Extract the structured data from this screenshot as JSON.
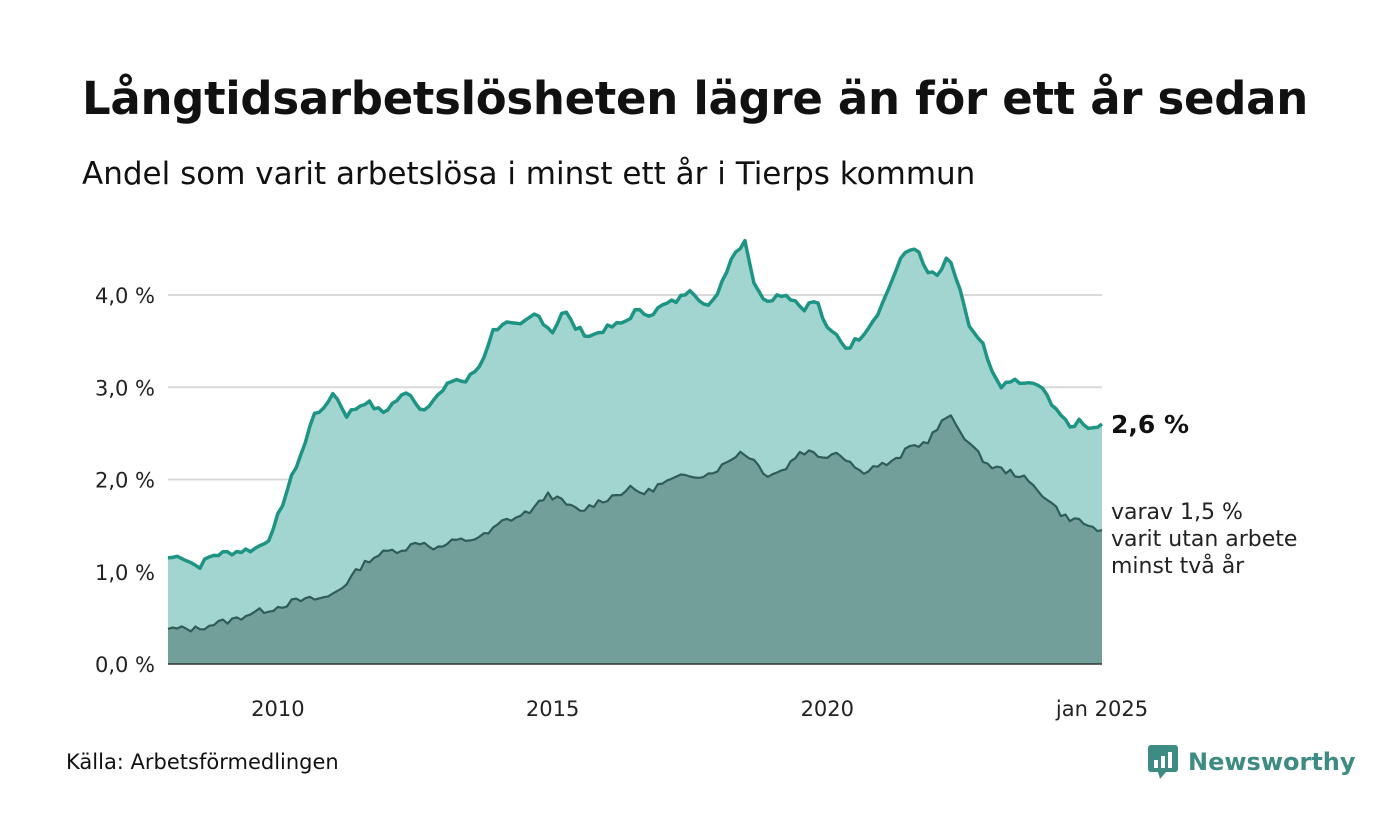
{
  "title": "Långtidsarbetslösheten lägre än för ett år sedan",
  "subtitle": "Andel som varit arbetslösa i minst ett år i Tierps kommun",
  "source": "Källa: Arbetsförmedlingen",
  "brand": {
    "name": "Newsworthy",
    "icon": "newsworthy-logo-icon",
    "color": "#3d8b83"
  },
  "colors": {
    "upper_fill": "#a3d5d0",
    "upper_line": "#1e9484",
    "lower_fill": "#729f99",
    "lower_line": "#2f5d57",
    "grid": "#d9d9d9"
  },
  "chart_data": {
    "type": "area",
    "x_start": "2008-01",
    "x_end": "2025-01",
    "frequency": "monthly",
    "ylim": [
      0,
      4.8
    ],
    "yticks": [
      0,
      1,
      2,
      3,
      4
    ],
    "ytick_labels": [
      "0,0 %",
      "1,0 %",
      "2,0 %",
      "3,0 %",
      "4,0 %"
    ],
    "xticks": [
      2010,
      2015,
      2020,
      2025
    ],
    "xtick_labels": [
      "2010",
      "2015",
      "2020",
      "jan 2025"
    ],
    "grid": true,
    "end_label": "2,6 %",
    "annotation_lines": [
      "varav 1,5 %",
      "varit utan arbete",
      "minst två år"
    ],
    "series": [
      {
        "key": "minst_ett_ar",
        "anchors": [
          [
            2008.0,
            1.15
          ],
          [
            2008.25,
            1.17
          ],
          [
            2008.55,
            1.05
          ],
          [
            2008.8,
            1.18
          ],
          [
            2009.25,
            1.22
          ],
          [
            2009.6,
            1.25
          ],
          [
            2009.9,
            1.4
          ],
          [
            2010.0,
            1.6
          ],
          [
            2010.3,
            2.1
          ],
          [
            2010.5,
            2.4
          ],
          [
            2010.7,
            2.8
          ],
          [
            2010.8,
            2.7
          ],
          [
            2011.0,
            2.95
          ],
          [
            2011.25,
            2.7
          ],
          [
            2011.6,
            2.85
          ],
          [
            2011.9,
            2.72
          ],
          [
            2012.2,
            2.88
          ],
          [
            2012.4,
            2.95
          ],
          [
            2012.6,
            2.75
          ],
          [
            2012.8,
            2.85
          ],
          [
            2013.0,
            2.95
          ],
          [
            2013.2,
            3.1
          ],
          [
            2013.4,
            3.05
          ],
          [
            2013.7,
            3.25
          ],
          [
            2013.9,
            3.6
          ],
          [
            2014.1,
            3.7
          ],
          [
            2014.4,
            3.65
          ],
          [
            2014.7,
            3.8
          ],
          [
            2015.0,
            3.6
          ],
          [
            2015.2,
            3.85
          ],
          [
            2015.4,
            3.65
          ],
          [
            2015.7,
            3.55
          ],
          [
            2015.9,
            3.62
          ],
          [
            2016.3,
            3.7
          ],
          [
            2016.5,
            3.82
          ],
          [
            2016.8,
            3.8
          ],
          [
            2017.0,
            3.88
          ],
          [
            2017.3,
            3.95
          ],
          [
            2017.5,
            4.08
          ],
          [
            2017.7,
            3.95
          ],
          [
            2017.8,
            3.85
          ],
          [
            2017.9,
            3.9
          ],
          [
            2018.05,
            4.1
          ],
          [
            2018.25,
            4.4
          ],
          [
            2018.5,
            4.6
          ],
          [
            2018.7,
            4.05
          ],
          [
            2018.9,
            3.95
          ],
          [
            2019.2,
            4.02
          ],
          [
            2019.4,
            3.95
          ],
          [
            2019.55,
            3.85
          ],
          [
            2019.8,
            3.95
          ],
          [
            2020.0,
            3.62
          ],
          [
            2020.2,
            3.55
          ],
          [
            2020.35,
            3.42
          ],
          [
            2020.6,
            3.55
          ],
          [
            2020.8,
            3.7
          ],
          [
            2021.0,
            3.9
          ],
          [
            2021.2,
            4.2
          ],
          [
            2021.4,
            4.45
          ],
          [
            2021.6,
            4.53
          ],
          [
            2021.8,
            4.25
          ],
          [
            2022.0,
            4.2
          ],
          [
            2022.2,
            4.4
          ],
          [
            2022.4,
            4.1
          ],
          [
            2022.6,
            3.6
          ],
          [
            2022.8,
            3.5
          ],
          [
            2023.0,
            3.15
          ],
          [
            2023.2,
            3.0
          ],
          [
            2023.4,
            3.08
          ],
          [
            2023.6,
            3.02
          ],
          [
            2023.8,
            3.05
          ],
          [
            2024.0,
            2.9
          ],
          [
            2024.2,
            2.75
          ],
          [
            2024.4,
            2.55
          ],
          [
            2024.6,
            2.65
          ],
          [
            2024.8,
            2.55
          ],
          [
            2025.0,
            2.6
          ]
        ]
      },
      {
        "key": "minst_tva_ar",
        "anchors": [
          [
            2008.0,
            0.38
          ],
          [
            2008.5,
            0.38
          ],
          [
            2008.8,
            0.43
          ],
          [
            2009.2,
            0.48
          ],
          [
            2009.5,
            0.55
          ],
          [
            2009.9,
            0.6
          ],
          [
            2010.3,
            0.68
          ],
          [
            2010.6,
            0.7
          ],
          [
            2010.9,
            0.72
          ],
          [
            2011.2,
            0.85
          ],
          [
            2011.5,
            1.05
          ],
          [
            2011.7,
            1.15
          ],
          [
            2012.0,
            1.22
          ],
          [
            2012.3,
            1.25
          ],
          [
            2012.6,
            1.33
          ],
          [
            2012.9,
            1.25
          ],
          [
            2013.2,
            1.33
          ],
          [
            2013.5,
            1.35
          ],
          [
            2013.8,
            1.4
          ],
          [
            2014.1,
            1.55
          ],
          [
            2014.4,
            1.6
          ],
          [
            2014.7,
            1.7
          ],
          [
            2014.9,
            1.85
          ],
          [
            2015.2,
            1.75
          ],
          [
            2015.5,
            1.65
          ],
          [
            2015.8,
            1.75
          ],
          [
            2016.1,
            1.82
          ],
          [
            2016.4,
            1.9
          ],
          [
            2016.7,
            1.85
          ],
          [
            2016.9,
            1.93
          ],
          [
            2017.2,
            2.0
          ],
          [
            2017.5,
            2.05
          ],
          [
            2017.8,
            2.05
          ],
          [
            2018.1,
            2.15
          ],
          [
            2018.4,
            2.3
          ],
          [
            2018.6,
            2.25
          ],
          [
            2018.9,
            2.05
          ],
          [
            2019.2,
            2.1
          ],
          [
            2019.5,
            2.3
          ],
          [
            2019.7,
            2.3
          ],
          [
            2019.9,
            2.25
          ],
          [
            2020.2,
            2.3
          ],
          [
            2020.4,
            2.2
          ],
          [
            2020.6,
            2.08
          ],
          [
            2020.9,
            2.15
          ],
          [
            2021.2,
            2.18
          ],
          [
            2021.5,
            2.35
          ],
          [
            2021.8,
            2.4
          ],
          [
            2022.0,
            2.55
          ],
          [
            2022.2,
            2.7
          ],
          [
            2022.4,
            2.55
          ],
          [
            2022.7,
            2.3
          ],
          [
            2022.95,
            2.15
          ],
          [
            2023.2,
            2.1
          ],
          [
            2023.5,
            2.05
          ],
          [
            2023.7,
            1.95
          ],
          [
            2024.0,
            1.8
          ],
          [
            2024.3,
            1.6
          ],
          [
            2024.6,
            1.55
          ],
          [
            2024.8,
            1.48
          ],
          [
            2025.0,
            1.45
          ]
        ]
      }
    ]
  }
}
